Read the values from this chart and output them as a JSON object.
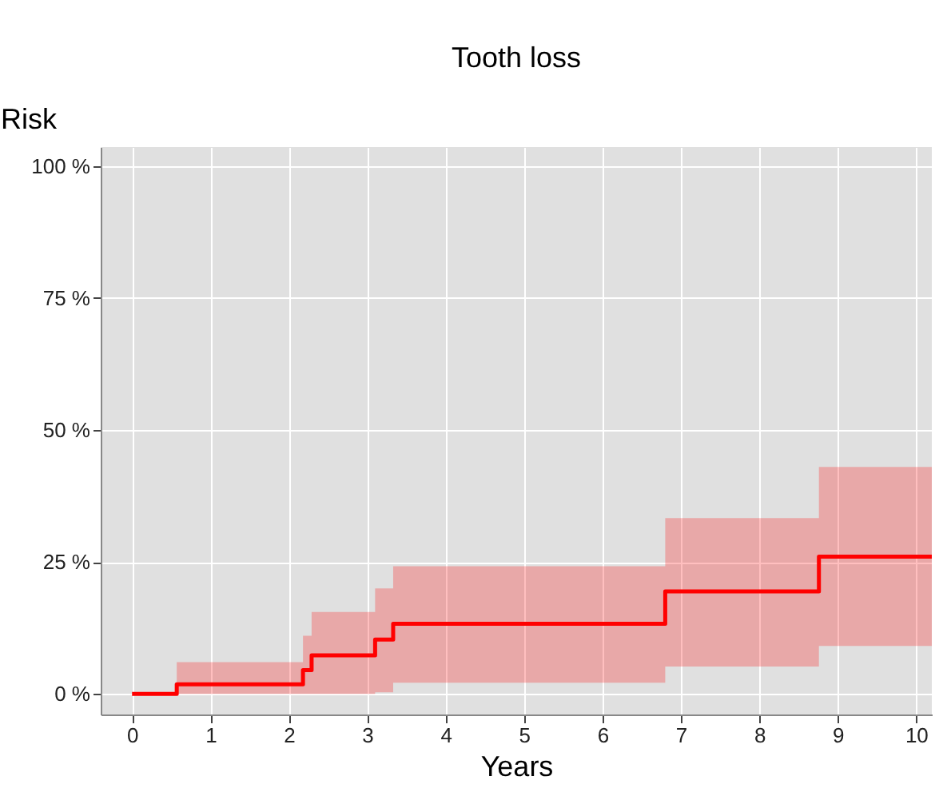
{
  "chart_data": {
    "type": "step",
    "title": "Tooth loss",
    "xlabel": "Years",
    "ylabel": "Risk",
    "xlim": [
      -0.4,
      10.2
    ],
    "xticks": [
      0,
      1,
      2,
      3,
      4,
      5,
      6,
      7,
      8,
      9,
      10
    ],
    "ylim": [
      -3.9,
      103.6
    ],
    "yticks": [
      {
        "value": 0,
        "label": "0 %"
      },
      {
        "value": 25,
        "label": "25 %"
      },
      {
        "value": 50,
        "label": "50 %"
      },
      {
        "value": 75,
        "label": "75 %"
      },
      {
        "value": 100,
        "label": "100 %"
      }
    ],
    "grid": true,
    "line_style": "solid",
    "marker": "none",
    "series": [
      {
        "color": "#ff0000",
        "x": [
          0,
          0.57,
          2.18,
          2.29,
          3.1,
          3.33,
          6.8,
          8.76,
          10.2
        ],
        "values": [
          0,
          1.8,
          4.5,
          7.3,
          10.3,
          13.3,
          19.4,
          26,
          26
        ],
        "lower": [
          0,
          0,
          0,
          0,
          0.3,
          2.1,
          5.2,
          9.1,
          9.1
        ],
        "upper": [
          0,
          6,
          11,
          15.5,
          20,
          24.2,
          33.3,
          43,
          43
        ]
      }
    ]
  }
}
